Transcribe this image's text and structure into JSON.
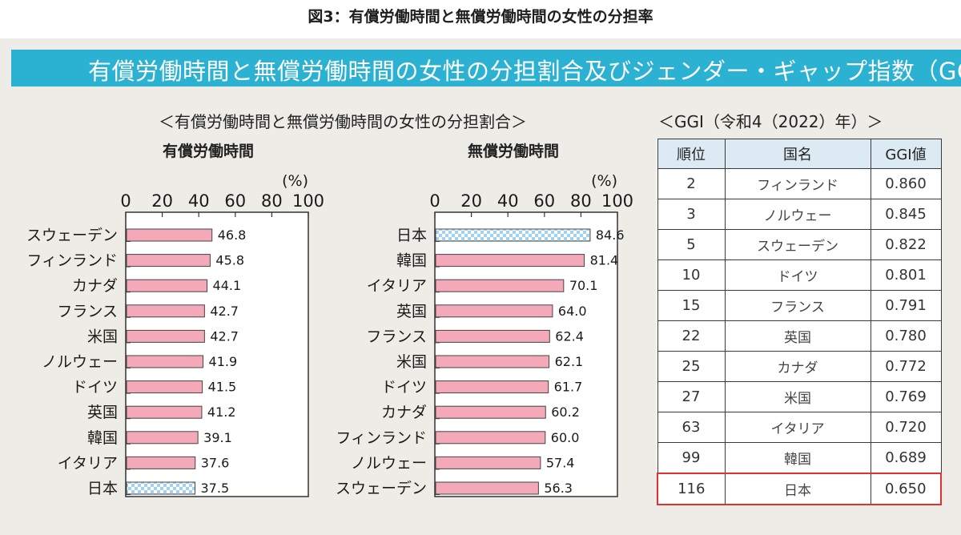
{
  "figure_title": "図3：有償労働時間と無償労働時間の女性の分担率",
  "banner_title": "有償労働時間と無償労働時間の女性の分担割合及びジェンダー・ギャップ指数（GGI",
  "charts_title": "＜有償労働時間と無償労働時間の女性の分担割合＞",
  "colors": {
    "banner": "#2bb1d1",
    "bar": "#f4a9b8",
    "japan_bar": "#9fd3ef",
    "highlight": "#e53030",
    "table_header": "#dcebf3"
  },
  "chart_data": [
    {
      "type": "bar",
      "orientation": "horizontal",
      "title": "有償労働時間",
      "unit_label": "(%)",
      "xlim": [
        0,
        100
      ],
      "ticks": [
        "0",
        "20",
        "40",
        "60",
        "80",
        "100"
      ],
      "categories": [
        "スウェーデン",
        "フィンランド",
        "カナダ",
        "フランス",
        "米国",
        "ノルウェー",
        "ドイツ",
        "英国",
        "韓国",
        "イタリア",
        "日本"
      ],
      "values": [
        46.8,
        45.8,
        44.1,
        42.7,
        42.7,
        41.9,
        41.5,
        41.2,
        39.1,
        37.6,
        37.5
      ],
      "labels": [
        "46.8",
        "45.8",
        "44.1",
        "42.7",
        "42.7",
        "41.9",
        "41.5",
        "41.2",
        "39.1",
        "37.6",
        "37.5"
      ],
      "highlight_category": "日本"
    },
    {
      "type": "bar",
      "orientation": "horizontal",
      "title": "無償労働時間",
      "unit_label": "(%)",
      "xlim": [
        0,
        100
      ],
      "ticks": [
        "0",
        "20",
        "40",
        "60",
        "80",
        "100"
      ],
      "categories": [
        "日本",
        "韓国",
        "イタリア",
        "英国",
        "フランス",
        "米国",
        "ドイツ",
        "カナダ",
        "フィンランド",
        "ノルウェー",
        "スウェーデン"
      ],
      "values": [
        84.6,
        81.4,
        70.1,
        64.0,
        62.4,
        62.1,
        61.7,
        60.2,
        60.0,
        57.4,
        56.3
      ],
      "labels": [
        "84.6",
        "81.4",
        "70.1",
        "64.0",
        "62.4",
        "62.1",
        "61.7",
        "60.2",
        "60.0",
        "57.4",
        "56.3"
      ],
      "highlight_category": "日本"
    }
  ],
  "ggi_table": {
    "title": "＜GGI（令和4（2022）年）＞",
    "headers": [
      "順位",
      "国名",
      "GGI値"
    ],
    "rows": [
      [
        "2",
        "フィンランド",
        "0.860"
      ],
      [
        "3",
        "ノルウェー",
        "0.845"
      ],
      [
        "5",
        "スウェーデン",
        "0.822"
      ],
      [
        "10",
        "ドイツ",
        "0.801"
      ],
      [
        "15",
        "フランス",
        "0.791"
      ],
      [
        "22",
        "英国",
        "0.780"
      ],
      [
        "25",
        "カナダ",
        "0.772"
      ],
      [
        "27",
        "米国",
        "0.769"
      ],
      [
        "63",
        "イタリア",
        "0.720"
      ],
      [
        "99",
        "韓国",
        "0.689"
      ],
      [
        "116",
        "日本",
        "0.650"
      ]
    ],
    "highlight_row": "日本"
  }
}
